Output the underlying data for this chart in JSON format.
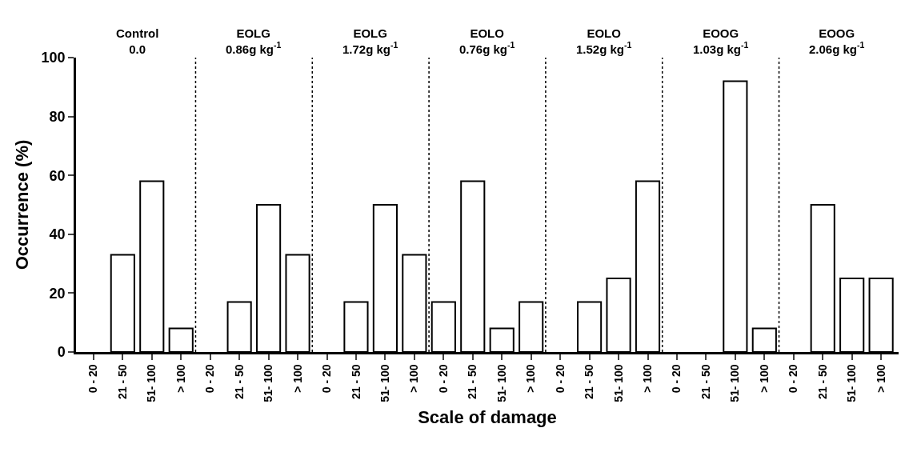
{
  "chart_data": {
    "type": "bar",
    "ylabel": "Occurrence (%)",
    "xlabel": "Scale of damage",
    "categories": [
      "0 - 20",
      "21 - 50",
      "51- 100",
      "> 100",
      "0 - 20",
      "21 - 50",
      "51- 100",
      "> 100",
      "0 - 20",
      "21 - 50",
      "51- 100",
      "> 100",
      "0 - 20",
      "21 - 50",
      "51- 100",
      "> 100",
      "0 - 20",
      "21 - 50",
      "51- 100",
      "> 100",
      "0 - 20",
      "21 - 50",
      "51- 100",
      "> 100",
      "0 - 20",
      "21 - 50",
      "51- 100",
      "> 100"
    ],
    "values": [
      0,
      33,
      58,
      8,
      0,
      17,
      50,
      33,
      0,
      17,
      50,
      33,
      17,
      58,
      8,
      17,
      0,
      17,
      25,
      58,
      0,
      0,
      92,
      8,
      0,
      50,
      25,
      25
    ],
    "color": "#ffffff",
    "ylim": [
      0,
      100
    ],
    "yticks": [
      0,
      20,
      40,
      60,
      80,
      100
    ],
    "grid": false,
    "annotations": [
      "Control\n0.0",
      "EOLG\n0.86g kg$^{-1}$",
      "EOLG\n1.72g kg$^{-1}$",
      "EOLO\n0.76g kg$^{-1}$",
      "EOLO\n1.52g kg$^{-1}$",
      "EOOG\n1.03g kg$^{-1}$",
      "EOOG\n2.06g kg$^{-1}$"
    ]
  }
}
